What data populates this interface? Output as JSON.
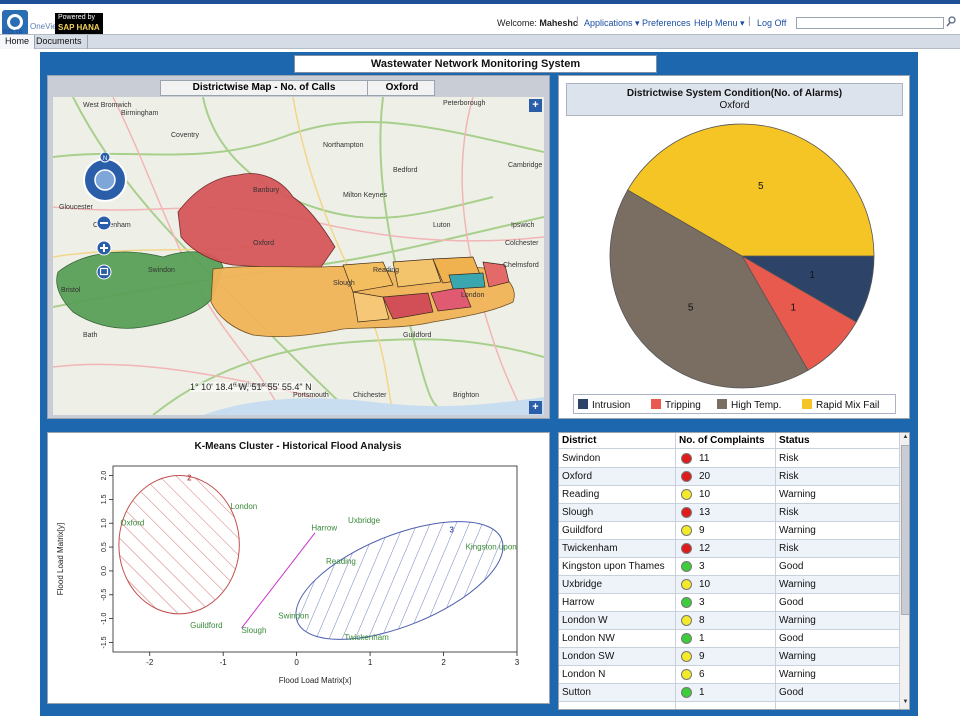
{
  "header": {
    "logo_text": "ROLTA",
    "oneview": "OneView",
    "powered_by": "Powered by",
    "sap_hana": "SAP HANA",
    "welcome_label": "Welcome:",
    "user": "Maheshc",
    "menus": [
      "Applications",
      "Preferences",
      "Help Menu",
      "Log Off"
    ]
  },
  "tabs": [
    "Home",
    "Documents"
  ],
  "page_title": "Wastewater Network Monitoring System",
  "map": {
    "title": "Districtwise Map - No. of Calls",
    "district": "Oxford",
    "coordinates": "1° 10' 18.4\" W, 51° 55' 55.4\" N",
    "place_labels": [
      "West Bromwich",
      "Birmingham",
      "Coventry",
      "Northampton",
      "Peterborough",
      "Bedford",
      "Cambridge",
      "Oxford",
      "Reading",
      "Swindon",
      "Gloucester",
      "Bristol",
      "London",
      "Slough",
      "Guildford",
      "Southampton",
      "Portsmouth",
      "Brighton",
      "Chichester",
      "Bath",
      "Cheltenham",
      "Luton",
      "Milton Keynes",
      "Banbury",
      "Ipswich",
      "Colchester",
      "Chelmsford"
    ]
  },
  "pie": {
    "title": "Districtwise System Condition(No. of Alarms)",
    "subtitle": "Oxford",
    "chart_data": {
      "type": "pie",
      "categories": [
        "Intrusion",
        "Tripping",
        "High Temp.",
        "Rapid Mix Fail"
      ],
      "values": [
        1,
        1,
        5,
        5
      ],
      "colors": [
        "#2d4468",
        "#e8594e",
        "#7a6e62",
        "#f5c425"
      ]
    }
  },
  "cluster": {
    "chart_data": {
      "type": "scatter",
      "title": "K-Means Cluster - Historical Flood Analysis",
      "xlabel": "Flood Load Matrix[x]",
      "ylabel": "Flood Load Matrix[y]",
      "xlim": [
        -2.5,
        3
      ],
      "ylim": [
        -1.7,
        2.2
      ],
      "xticks": [
        "-2",
        "-1",
        "0",
        "1",
        "2",
        "3"
      ],
      "yticks": [
        "-1.5",
        "-1.0",
        "-0.5",
        "0.0",
        "0.5",
        "1.0",
        "1.5",
        "2.0"
      ],
      "clusters": [
        {
          "name": "2",
          "color": "#c0504d",
          "center": [
            -1.6,
            0.55
          ],
          "rx": 0.82,
          "ry": 1.45
        },
        {
          "name": "3",
          "color": "#4d5fb0",
          "center": [
            1.4,
            -0.2
          ],
          "rx": 1.5,
          "ry": 0.95
        }
      ],
      "points": [
        {
          "label": "London",
          "x": -0.9,
          "y": 1.3
        },
        {
          "label": "Oxford",
          "x": -2.4,
          "y": 0.95
        },
        {
          "label": "Guildford",
          "x": -1.45,
          "y": -1.2
        },
        {
          "label": "Slough",
          "x": -0.75,
          "y": -1.3
        },
        {
          "label": "Harrow",
          "x": 0.2,
          "y": 0.85
        },
        {
          "label": "Uxbridge",
          "x": 0.7,
          "y": 1.0
        },
        {
          "label": "Reading",
          "x": 0.4,
          "y": 0.15
        },
        {
          "label": "Kingston upon",
          "x": 2.3,
          "y": 0.45
        },
        {
          "label": "Swindon",
          "x": -0.25,
          "y": -1.0
        },
        {
          "label": "Twickenham",
          "x": 0.65,
          "y": -1.45
        }
      ]
    }
  },
  "table": {
    "headers": [
      "District",
      "No. of Complaints",
      "Status"
    ],
    "rows": [
      {
        "district": "Swindon",
        "count": "11",
        "status": "Risk",
        "color": "#e01b1b"
      },
      {
        "district": "Oxford",
        "count": "20",
        "status": "Risk",
        "color": "#e01b1b"
      },
      {
        "district": "Reading",
        "count": "10",
        "status": "Warning",
        "color": "#f2ea2a"
      },
      {
        "district": "Slough",
        "count": "13",
        "status": "Risk",
        "color": "#e01b1b"
      },
      {
        "district": "Guildford",
        "count": "9",
        "status": "Warning",
        "color": "#f2ea2a"
      },
      {
        "district": "Twickenham",
        "count": "12",
        "status": "Risk",
        "color": "#e01b1b"
      },
      {
        "district": "Kingston upon Thames",
        "count": "3",
        "status": "Good",
        "color": "#3ccc3c"
      },
      {
        "district": "Uxbridge",
        "count": "10",
        "status": "Warning",
        "color": "#f2ea2a"
      },
      {
        "district": "Harrow",
        "count": "3",
        "status": "Good",
        "color": "#3ccc3c"
      },
      {
        "district": "London W",
        "count": "8",
        "status": "Warning",
        "color": "#f2ea2a"
      },
      {
        "district": "London NW",
        "count": "1",
        "status": "Good",
        "color": "#3ccc3c"
      },
      {
        "district": "London SW",
        "count": "9",
        "status": "Warning",
        "color": "#f2ea2a"
      },
      {
        "district": "London N",
        "count": "6",
        "status": "Warning",
        "color": "#f2ea2a"
      },
      {
        "district": "Sutton",
        "count": "1",
        "status": "Good",
        "color": "#3ccc3c"
      }
    ]
  }
}
